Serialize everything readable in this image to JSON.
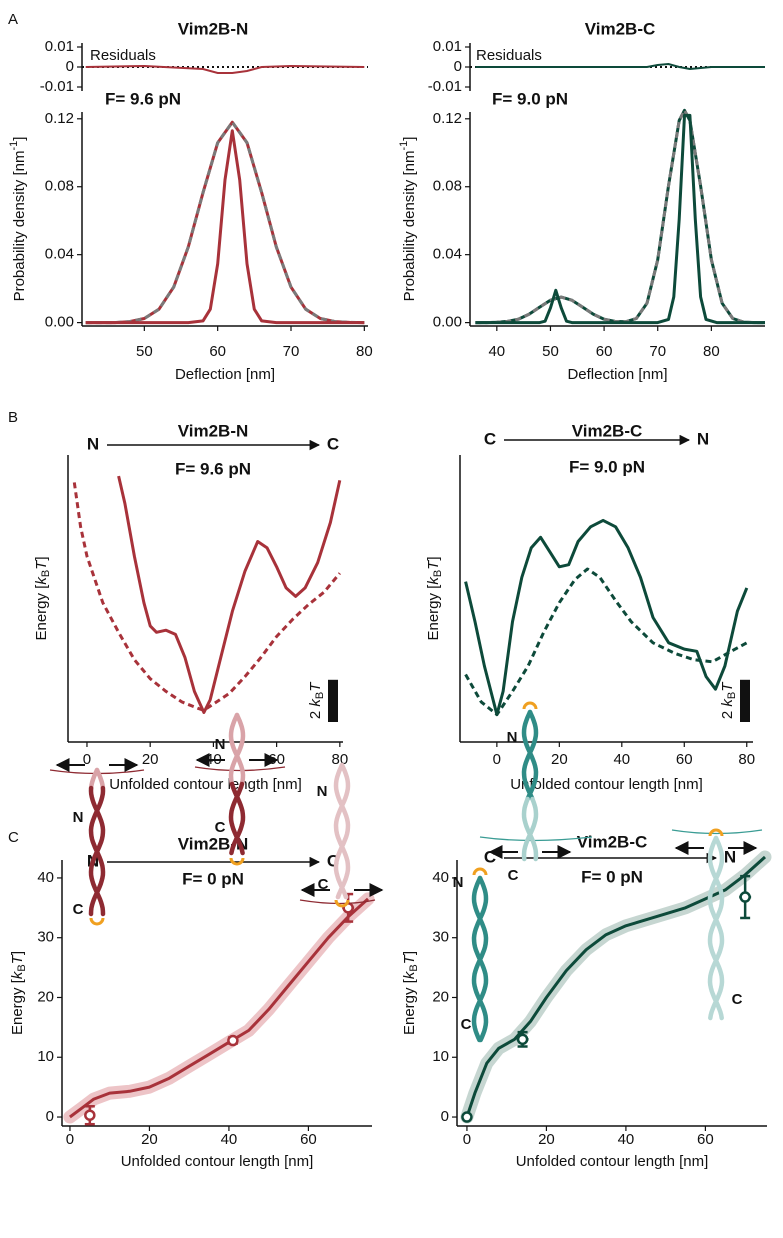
{
  "panel_labels": [
    "A",
    "B",
    "C"
  ],
  "chart_data": [
    {
      "type": "line",
      "title": "Vim2B-N",
      "annotation": "F= 9.6 pN",
      "x_label": "Deflection [nm]",
      "y_label_parts": [
        "Probability density [nm",
        "-1",
        "]"
      ],
      "xlim": [
        41.5,
        80.5
      ],
      "xticks": [
        50,
        60,
        70,
        80
      ],
      "ylim": [
        -0.002,
        0.124
      ],
      "yticks": [
        {
          "value": 0,
          "label": "0.00"
        },
        0.04,
        0.08,
        0.12
      ],
      "series": [
        {
          "color": "#a8323a",
          "style": "solid",
          "width": 3,
          "x": [
            42,
            44,
            46,
            48,
            50,
            52,
            54,
            56,
            58,
            60,
            62,
            64,
            66,
            68,
            70,
            72,
            74,
            76,
            78,
            80
          ],
          "values": [
            0,
            0,
            0,
            0.0006,
            0.0024,
            0.0079,
            0.0209,
            0.0446,
            0.0765,
            0.1059,
            0.118,
            0.1059,
            0.0765,
            0.0446,
            0.0209,
            0.0079,
            0.0024,
            0.0006,
            0.0001,
            0
          ]
        },
        {
          "color": "#7a7a7a",
          "style": "dashed",
          "width": 3,
          "x": [
            42,
            44,
            46,
            48,
            50,
            52,
            54,
            56,
            58,
            60,
            62,
            64,
            66,
            68,
            70,
            72,
            74,
            76,
            78,
            80
          ],
          "values": [
            0,
            0,
            0,
            0.0006,
            0.0024,
            0.0079,
            0.0209,
            0.0446,
            0.0765,
            0.1059,
            0.118,
            0.1059,
            0.0765,
            0.0446,
            0.0209,
            0.0079,
            0.0024,
            0.0006,
            0.0001,
            0
          ]
        },
        {
          "color": "#a8323a",
          "style": "solid",
          "width": 3,
          "x": [
            42,
            56,
            58,
            59,
            60,
            61,
            62,
            63,
            64,
            65,
            66,
            68,
            80
          ],
          "values": [
            0,
            0,
            0.001,
            0.0079,
            0.0347,
            0.084,
            0.113,
            0.084,
            0.0347,
            0.0079,
            0.001,
            0,
            0
          ]
        }
      ],
      "inset": {
        "label": "Residuals",
        "ylim": [
          -0.012,
          0.012
        ],
        "yticks": [
          0.01,
          0,
          -0.01
        ],
        "series": [
          {
            "color": "#a8323a",
            "x": [
              42,
              50,
              58,
              60,
              62,
              64,
              66,
              70,
              80
            ],
            "values": [
              0,
              0.0005,
              -0.001,
              -0.003,
              -0.003,
              -0.002,
              0,
              0.0005,
              0
            ]
          }
        ]
      }
    },
    {
      "type": "line",
      "title": "Vim2B-C",
      "annotation": "F= 9.0 pN",
      "x_label": "Deflection [nm]",
      "y_label_parts": [
        "Probability density [nm",
        "-1",
        "]"
      ],
      "xlim": [
        35,
        90
      ],
      "xticks": [
        40,
        50,
        60,
        70,
        80
      ],
      "ylim": [
        -0.002,
        0.124
      ],
      "yticks": [
        {
          "value": 0,
          "label": "0.00"
        },
        0.04,
        0.08,
        0.12
      ],
      "series": [
        {
          "color": "#0d4a3a",
          "style": "solid",
          "width": 3,
          "x": [
            36,
            38,
            40,
            42,
            44,
            46,
            48,
            50,
            52,
            54,
            56,
            58,
            60,
            62,
            64,
            66,
            68,
            70,
            72,
            74,
            75,
            76,
            78,
            80,
            82,
            84,
            86,
            88,
            90
          ],
          "values": [
            0,
            0,
            0.0002,
            0.0007,
            0.002,
            0.0049,
            0.0091,
            0.0132,
            0.015,
            0.0132,
            0.0091,
            0.0049,
            0.002,
            0.0007,
            0.0005,
            0.0024,
            0.0114,
            0.0369,
            0.0805,
            0.119,
            0.125,
            0.119,
            0.0805,
            0.0369,
            0.0114,
            0.0024,
            0.0003,
            0,
            0
          ]
        },
        {
          "color": "#7a7a7a",
          "style": "dashed",
          "width": 3,
          "x": [
            36,
            38,
            40,
            42,
            44,
            46,
            48,
            50,
            52,
            54,
            56,
            58,
            60,
            62,
            64,
            66,
            68,
            70,
            72,
            74,
            75,
            76,
            78,
            80,
            82,
            84,
            86,
            88,
            90
          ],
          "values": [
            0,
            0,
            0.0002,
            0.0007,
            0.002,
            0.0049,
            0.0091,
            0.0132,
            0.015,
            0.0132,
            0.0091,
            0.0049,
            0.002,
            0.0007,
            0.0005,
            0.0024,
            0.0114,
            0.0369,
            0.0805,
            0.119,
            0.125,
            0.119,
            0.0805,
            0.0369,
            0.0114,
            0.0024,
            0.0003,
            0,
            0
          ]
        },
        {
          "color": "#0d4a3a",
          "style": "solid",
          "width": 3,
          "x": [
            36,
            48,
            49,
            50,
            51,
            52,
            53,
            54,
            70,
            72,
            73,
            74,
            75,
            76,
            77,
            78,
            79,
            81,
            90
          ],
          "values": [
            0,
            0,
            0.0008,
            0.0087,
            0.019,
            0.0087,
            0.0008,
            0,
            0,
            0.0019,
            0.0152,
            0.0609,
            0.122,
            0.122,
            0.0609,
            0.0152,
            0.0019,
            0,
            0
          ]
        }
      ],
      "inset": {
        "label": "Residuals",
        "ylim": [
          -0.012,
          0.012
        ],
        "yticks": [
          0.01,
          0,
          -0.01
        ],
        "series": [
          {
            "color": "#0d4a3a",
            "x": [
              36,
              50,
              60,
              68,
              70,
              72,
              74,
              76,
              80,
              90
            ],
            "values": [
              0,
              0,
              0,
              0,
              0.001,
              0.0015,
              0,
              -0.001,
              0,
              0
            ]
          }
        ]
      }
    },
    {
      "type": "line",
      "title": "Vim2B-N",
      "annotation": "F= 9.6 pN",
      "arrow": {
        "from": "N",
        "to": "C"
      },
      "x_label": "Unfolded contour length [nm]",
      "y_label_parts": [
        "Energy [",
        "k",
        "B",
        "T",
        "]"
      ],
      "xlim": [
        -6,
        81
      ],
      "xticks": [
        0,
        20,
        40,
        60,
        80
      ],
      "ylim": [
        0,
        13.6
      ],
      "yticks": [],
      "series": [
        {
          "color": "#a8323a",
          "style": "solid",
          "width": 3,
          "x": [
            10,
            12,
            15,
            18,
            20,
            22,
            25,
            28,
            31,
            34,
            37,
            39,
            42,
            46,
            50,
            54,
            57,
            60,
            63,
            66,
            69,
            73,
            77,
            80
          ],
          "values": [
            12.6,
            11.3,
            8.8,
            6.6,
            5.5,
            5.2,
            5.3,
            5.1,
            4.0,
            2.4,
            1.4,
            2.0,
            3.8,
            6.2,
            8.1,
            9.5,
            9.2,
            8.3,
            7.3,
            6.9,
            7.3,
            8.5,
            10.4,
            12.4
          ]
        },
        {
          "color": "#a8323a",
          "style": "dashed",
          "width": 3,
          "x": [
            -4,
            -2,
            0,
            5,
            10,
            15,
            20,
            25,
            30,
            35,
            37,
            40,
            45,
            50,
            55,
            60,
            65,
            70,
            75,
            80
          ],
          "values": [
            12.3,
            10.2,
            8.8,
            6.6,
            5.2,
            3.9,
            3.0,
            2.4,
            1.9,
            1.6,
            1.5,
            1.8,
            2.3,
            3.1,
            4.0,
            5.0,
            5.8,
            6.5,
            7.1,
            8.0
          ]
        }
      ],
      "scalebar": {
        "value": 2,
        "label_parts": [
          "2 ",
          "k",
          "B",
          "T"
        ]
      }
    },
    {
      "type": "line",
      "title": "Vim2B-C",
      "annotation": "F= 9.0 pN",
      "arrow": {
        "from": "C",
        "to": "N"
      },
      "x_label": "Unfolded contour length [nm]",
      "y_label_parts": [
        "Energy [",
        "k",
        "B",
        "T",
        "]"
      ],
      "xlim": [
        -11.8,
        82
      ],
      "xticks": [
        0,
        20,
        40,
        60,
        80
      ],
      "ylim": [
        0,
        13.6
      ],
      "yticks": [],
      "series": [
        {
          "color": "#0d4a3a",
          "style": "solid",
          "width": 3,
          "x": [
            -10,
            -7,
            -4,
            0,
            2,
            5,
            8,
            11,
            14,
            17,
            20,
            23,
            26,
            30,
            34,
            38,
            42,
            46,
            50,
            55,
            60,
            64,
            67,
            70,
            73,
            77,
            80
          ],
          "values": [
            7.6,
            5.7,
            3.6,
            1.3,
            2.4,
            5.7,
            7.8,
            9.2,
            9.7,
            9.0,
            8.3,
            8.4,
            9.5,
            10.2,
            10.5,
            10.2,
            9.2,
            7.8,
            5.9,
            4.7,
            4.4,
            4.3,
            3.1,
            2.5,
            3.6,
            6.2,
            7.3
          ]
        },
        {
          "color": "#0d4a3a",
          "style": "dashed",
          "width": 3,
          "x": [
            -10,
            -5,
            0,
            5,
            10,
            15,
            20,
            25,
            29,
            33,
            38,
            43,
            50,
            57,
            63,
            69,
            75,
            80
          ],
          "values": [
            3.2,
            1.9,
            1.3,
            2.4,
            3.6,
            5.2,
            6.6,
            7.7,
            8.2,
            7.8,
            6.7,
            5.7,
            4.7,
            4.2,
            3.9,
            3.8,
            4.3,
            4.7
          ]
        }
      ],
      "scalebar": {
        "value": 2,
        "label_parts": [
          "2 ",
          "k",
          "B",
          "T"
        ]
      }
    },
    {
      "type": "line",
      "title": "Vim2B-N",
      "annotation": "F= 0 pN",
      "arrow": {
        "from": "N",
        "to": "C"
      },
      "x_label": "Unfolded contour length [nm]",
      "y_label_parts": [
        "Energy [",
        "k",
        "B",
        "T",
        "]"
      ],
      "xlim": [
        -2,
        76
      ],
      "xticks": [
        0,
        20,
        40,
        60
      ],
      "ylim": [
        -1.5,
        43
      ],
      "yticks": [
        0,
        10,
        20,
        30,
        40
      ],
      "series": [
        {
          "color": "#a8323a",
          "band": "#e8b5b9",
          "style": "solid",
          "width": 3,
          "x": [
            0,
            3,
            6,
            10,
            15,
            20,
            25,
            30,
            35,
            40,
            45,
            50,
            55,
            60,
            65,
            70,
            75
          ],
          "values": [
            0,
            1.5,
            3,
            4,
            4.3,
            5,
            6.5,
            8.5,
            10.5,
            12.5,
            14.5,
            18,
            22,
            26,
            30,
            33.5,
            36.5
          ]
        }
      ],
      "points": {
        "color": "#a8323a",
        "x": [
          5,
          41,
          70
        ],
        "values": [
          0.3,
          12.8,
          35
        ],
        "error": [
          1.5,
          0.5,
          2.3
        ],
        "x_error": [
          1,
          1,
          1.5
        ]
      },
      "cartoon_labels": [
        [
          "N",
          "C"
        ],
        [
          "N",
          "C"
        ],
        [
          "N",
          "C"
        ]
      ]
    },
    {
      "type": "line",
      "title": "Vim2B-C",
      "annotation": "F= 0 pN",
      "arrow": {
        "from": "C",
        "to": "N"
      },
      "x_label": "Unfolded contour length [nm]",
      "y_label_parts": [
        "Energy [",
        "k",
        "B",
        "T",
        "]"
      ],
      "xlim": [
        -2.5,
        75.5
      ],
      "xticks": [
        0,
        20,
        40,
        60
      ],
      "ylim": [
        -1.5,
        43
      ],
      "yticks": [
        0,
        10,
        20,
        30,
        40
      ],
      "series": [
        {
          "color": "#0d4a3a",
          "band": "#b8ccc6",
          "style": "solid",
          "width": 3,
          "x": [
            0,
            2,
            5,
            8,
            12,
            16,
            20,
            25,
            30,
            35,
            40,
            45,
            50,
            55,
            60,
            65,
            70,
            75
          ],
          "values": [
            0,
            4,
            9,
            11.5,
            13,
            16,
            20,
            24.5,
            28,
            30.5,
            32,
            33,
            34,
            35,
            36.5,
            38,
            40.5,
            43.5
          ]
        }
      ],
      "points": {
        "color": "#0d4a3a",
        "x": [
          0,
          14,
          70
        ],
        "values": [
          0,
          13,
          36.8
        ],
        "error": [
          0,
          1.2,
          3.5
        ],
        "x_error": [
          0.5,
          1.5,
          1.5
        ]
      },
      "cartoon_labels": [
        [
          "N",
          "C"
        ],
        [
          "N",
          "C"
        ],
        [
          "C"
        ]
      ]
    }
  ]
}
